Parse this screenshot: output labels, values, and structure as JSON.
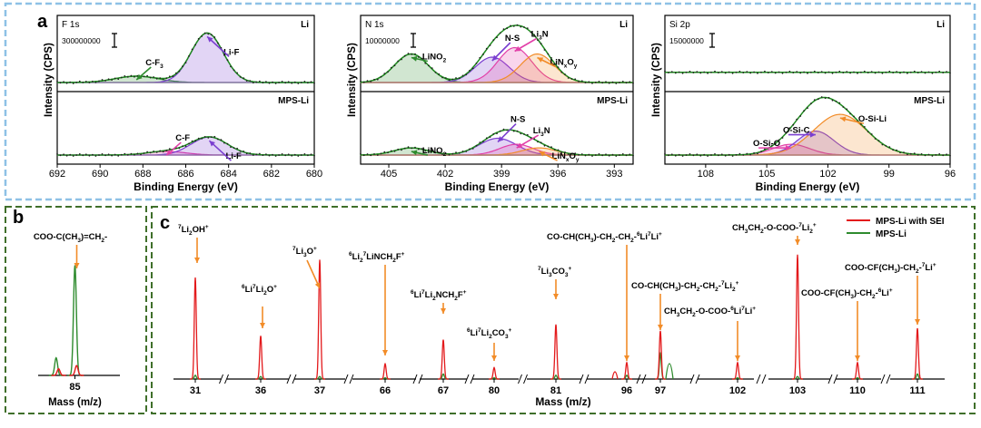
{
  "colors": {
    "red": "#e31a1c",
    "green": "#2e8b2e",
    "purple": "#7b3fd0",
    "orange": "#f28c28",
    "pink": "#e23fa8",
    "blueBorder": "#8ec1e6",
    "greenBorder": "#3f6f2a"
  },
  "chart_data": [
    {
      "id": "a1",
      "type": "line",
      "panel_letter": "a",
      "element": "F 1s",
      "xlabel": "Binding Energy (eV)",
      "ylabel": "Intensity (CPS)",
      "xlim": [
        692,
        680
      ],
      "xticks": [
        "692",
        "690",
        "688",
        "686",
        "684",
        "682",
        "680"
      ],
      "scale_label": "300000000",
      "subplots": [
        {
          "label": "Li",
          "peaks": [
            {
              "name": "C-F",
              "center": 688.3,
              "height": 0.1,
              "width": 1.0,
              "color": "green"
            },
            {
              "name": "Li-F",
              "center": 685.0,
              "height": 0.78,
              "width": 0.75,
              "color": "purple"
            }
          ],
          "annotations": [
            {
              "text": "C-F",
              "sub": "3",
              "peak": 0
            },
            {
              "text": "Li-F",
              "sub": "",
              "peak": 1
            }
          ]
        },
        {
          "label": "MPS-Li",
          "peaks": [
            {
              "name": "C-F",
              "center": 686.9,
              "height": 0.06,
              "width": 0.9,
              "color": "pink"
            },
            {
              "name": "Li-F",
              "center": 684.9,
              "height": 0.3,
              "width": 0.85,
              "color": "purple"
            }
          ],
          "annotations": [
            {
              "text": "C-F",
              "sub": "",
              "peak": 0
            },
            {
              "text": "Li-F",
              "sub": "",
              "peak": 1
            }
          ]
        }
      ]
    },
    {
      "id": "a2",
      "type": "line",
      "element": "N 1s",
      "xlabel": "Binding Energy (eV)",
      "ylabel": "Intensity (CPS)",
      "xlim": [
        406.5,
        392
      ],
      "xticks": [
        "405",
        "402",
        "399",
        "396",
        "393"
      ],
      "scale_label": "10000000",
      "subplots": [
        {
          "label": "Li",
          "peaks": [
            {
              "name": "LiNO2",
              "center": 403.8,
              "height": 0.45,
              "width": 0.9,
              "color": "green"
            },
            {
              "name": "N-S",
              "center": 399.5,
              "height": 0.4,
              "width": 0.9,
              "color": "purple"
            },
            {
              "name": "Li3N",
              "center": 398.3,
              "height": 0.55,
              "width": 0.9,
              "color": "pink"
            },
            {
              "name": "LiNxOy",
              "center": 397.1,
              "height": 0.45,
              "width": 0.9,
              "color": "orange"
            }
          ],
          "annotations": [
            {
              "text": "LiNO",
              "sub": "2",
              "peak": 0
            },
            {
              "text": "N-S",
              "sub": "",
              "peak": 1
            },
            {
              "text": "Li",
              "sub": "3",
              "tail": "N",
              "peak": 2
            },
            {
              "text": "LiN",
              "sub": "x",
              "tail": "O",
              "sub2": "y",
              "peak": 3
            }
          ]
        },
        {
          "label": "MPS-Li",
          "peaks": [
            {
              "name": "LiNO2",
              "center": 403.8,
              "height": 0.12,
              "width": 0.9,
              "color": "green"
            },
            {
              "name": "N-S",
              "center": 399.2,
              "height": 0.28,
              "width": 1.0,
              "color": "purple"
            },
            {
              "name": "Li3N",
              "center": 398.2,
              "height": 0.18,
              "width": 0.9,
              "color": "pink"
            },
            {
              "name": "LiNxOy",
              "center": 397.0,
              "height": 0.12,
              "width": 0.9,
              "color": "orange"
            }
          ],
          "annotations": [
            {
              "text": "LiNO",
              "sub": "2",
              "peak": 0
            },
            {
              "text": "N-S",
              "sub": "",
              "peak": 1
            },
            {
              "text": "Li",
              "sub": "3",
              "tail": "N",
              "peak": 2
            },
            {
              "text": "LiN",
              "sub": "x",
              "tail": "O",
              "sub2": "y",
              "peak": 3
            }
          ]
        }
      ]
    },
    {
      "id": "a3",
      "type": "line",
      "element": "Si 2p",
      "xlabel": "Binding Energy (eV)",
      "ylabel": "Intensity (CPS)",
      "xlim": [
        110,
        96
      ],
      "xticks": [
        "108",
        "105",
        "102",
        "99",
        "96"
      ],
      "scale_label": "15000000",
      "subplots": [
        {
          "label": "Li",
          "peaks": [],
          "baseline": 0.16,
          "annotations": []
        },
        {
          "label": "MPS-Li",
          "peaks": [
            {
              "name": "O-Si-O",
              "center": 103.8,
              "height": 0.18,
              "width": 0.9,
              "color": "pink"
            },
            {
              "name": "O-Si-C",
              "center": 102.6,
              "height": 0.4,
              "width": 0.9,
              "color": "purple"
            },
            {
              "name": "O-Si-Li",
              "center": 101.4,
              "height": 0.68,
              "width": 1.3,
              "color": "orange"
            }
          ],
          "annotations": [
            {
              "text": "O-Si-O",
              "sub": "",
              "peak": 0
            },
            {
              "text": "O-Si-C",
              "sub": "",
              "peak": 1
            },
            {
              "text": "O-Si-Li",
              "sub": "",
              "peak": 2
            }
          ]
        }
      ]
    },
    {
      "id": "b",
      "type": "line",
      "panel_letter": "b",
      "xlabel": "Mass (m/z)",
      "tick": "85",
      "fragment": {
        "parts": [
          [
            "COO-C(CH",
            ""
          ],
          [
            "3",
            "sub"
          ],
          [
            ")=CH",
            ""
          ],
          [
            "2",
            "sub"
          ],
          [
            "-",
            ""
          ]
        ]
      },
      "series": [
        {
          "name": "MPS-Li",
          "color": "green",
          "peaks": [
            [
              0.45,
              1.0
            ],
            [
              0.22,
              0.16
            ]
          ]
        },
        {
          "name": "MPS-Li with SEI",
          "color": "red",
          "peaks": [
            [
              0.47,
              0.09
            ],
            [
              0.25,
              0.06
            ]
          ]
        }
      ]
    },
    {
      "id": "c",
      "type": "line",
      "panel_letter": "c",
      "xlabel": "Mass (m/z)",
      "legend": [
        "MPS-Li with SEI",
        "MPS-Li"
      ],
      "masses": [
        "31",
        "36",
        "37",
        "66",
        "67",
        "80",
        "81",
        "96",
        "97",
        "102",
        "103",
        "110",
        "111"
      ],
      "red_heights": [
        0.8,
        0.34,
        0.94,
        0.12,
        0.31,
        0.09,
        0.43,
        0.13,
        0.38,
        0.13,
        0.98,
        0.13,
        0.4
      ],
      "green_heights": [
        0.03,
        0.02,
        0.02,
        0.01,
        0.04,
        0.01,
        0.03,
        0.03,
        0.2,
        0.01,
        0.02,
        0.01,
        0.04
      ],
      "labels": [
        {
          "parts": [
            [
              "7",
              "sup"
            ],
            [
              "Li",
              ""
            ],
            [
              "2",
              "sub"
            ],
            [
              "OH",
              ""
            ],
            [
              "+",
              "sup"
            ]
          ]
        },
        {
          "parts": [
            [
              "6",
              "sup"
            ],
            [
              "Li",
              ""
            ],
            [
              "7",
              "sup"
            ],
            [
              "Li",
              ""
            ],
            [
              "2",
              "sub"
            ],
            [
              "O",
              ""
            ],
            [
              "+",
              "sup"
            ]
          ]
        },
        {
          "parts": [
            [
              "7",
              "sup"
            ],
            [
              "Li",
              ""
            ],
            [
              "3",
              "sub"
            ],
            [
              "O",
              ""
            ],
            [
              "+",
              "sup"
            ]
          ]
        },
        {
          "parts": [
            [
              "6",
              "sup"
            ],
            [
              "Li",
              ""
            ],
            [
              "2",
              "sub"
            ],
            [
              "7",
              "sup"
            ],
            [
              "LiNCH",
              ""
            ],
            [
              "2",
              "sub"
            ],
            [
              "F",
              ""
            ],
            [
              "+",
              "sup"
            ]
          ]
        },
        {
          "parts": [
            [
              "6",
              "sup"
            ],
            [
              "Li",
              ""
            ],
            [
              "7",
              "sup"
            ],
            [
              "Li",
              ""
            ],
            [
              "2",
              "sub"
            ],
            [
              "NCH",
              ""
            ],
            [
              "2",
              "sub"
            ],
            [
              "F",
              ""
            ],
            [
              "+",
              "sup"
            ]
          ]
        },
        {
          "parts": [
            [
              "6",
              "sup"
            ],
            [
              "Li",
              ""
            ],
            [
              "7",
              "sup"
            ],
            [
              "Li",
              ""
            ],
            [
              "2",
              "sub"
            ],
            [
              "CO",
              ""
            ],
            [
              "3",
              "sub"
            ],
            [
              "+",
              "sup"
            ]
          ]
        },
        {
          "parts": [
            [
              "7",
              "sup"
            ],
            [
              "Li",
              ""
            ],
            [
              "3",
              "sub"
            ],
            [
              "CO",
              ""
            ],
            [
              "3",
              "sub"
            ],
            [
              "+",
              "sup"
            ]
          ]
        },
        {
          "parts": [
            [
              "CO-CH(CH",
              ""
            ],
            [
              "3",
              "sub"
            ],
            [
              ")-CH",
              ""
            ],
            [
              "2",
              "sub"
            ],
            [
              "-CH",
              ""
            ],
            [
              "2",
              "sub"
            ],
            [
              "-",
              ""
            ],
            [
              "6",
              "sup"
            ],
            [
              "Li",
              ""
            ],
            [
              "7",
              "sup"
            ],
            [
              "Li",
              ""
            ],
            [
              "+",
              "sup"
            ]
          ]
        },
        {
          "parts": [
            [
              "CO-CH(CH",
              ""
            ],
            [
              "3",
              "sub"
            ],
            [
              ")-CH",
              ""
            ],
            [
              "2",
              "sub"
            ],
            [
              "-CH",
              ""
            ],
            [
              "2",
              "sub"
            ],
            [
              "-",
              ""
            ],
            [
              "7",
              "sup"
            ],
            [
              "Li",
              ""
            ],
            [
              "2",
              "sub"
            ],
            [
              "+",
              "sup"
            ]
          ]
        },
        {
          "parts": [
            [
              "CH",
              ""
            ],
            [
              "3",
              "sub"
            ],
            [
              "CH",
              ""
            ],
            [
              "2",
              "sub"
            ],
            [
              "-O-COO-",
              ""
            ],
            [
              "6",
              "sup"
            ],
            [
              "Li",
              ""
            ],
            [
              "7",
              "sup"
            ],
            [
              "Li",
              ""
            ],
            [
              "+",
              "sup"
            ]
          ]
        },
        {
          "parts": [
            [
              "CH",
              ""
            ],
            [
              "3",
              "sub"
            ],
            [
              "CH",
              ""
            ],
            [
              "2",
              "sub"
            ],
            [
              "-O-COO-",
              ""
            ],
            [
              "7",
              "sup"
            ],
            [
              "Li",
              ""
            ],
            [
              "2",
              "sub"
            ],
            [
              "+",
              "sup"
            ]
          ]
        },
        {
          "parts": [
            [
              "COO-CF(CH",
              ""
            ],
            [
              "3",
              "sub"
            ],
            [
              ")-CH",
              ""
            ],
            [
              "2",
              "sub"
            ],
            [
              "-",
              ""
            ],
            [
              "6",
              "sup"
            ],
            [
              "Li",
              ""
            ],
            [
              "+",
              "sup"
            ]
          ]
        },
        {
          "parts": [
            [
              "COO-CF(CH",
              ""
            ],
            [
              "3",
              "sub"
            ],
            [
              ")-CH",
              ""
            ],
            [
              "2",
              "sub"
            ],
            [
              "-",
              ""
            ],
            [
              "7",
              "sup"
            ],
            [
              "Li",
              ""
            ],
            [
              "+",
              "sup"
            ]
          ]
        }
      ]
    }
  ]
}
